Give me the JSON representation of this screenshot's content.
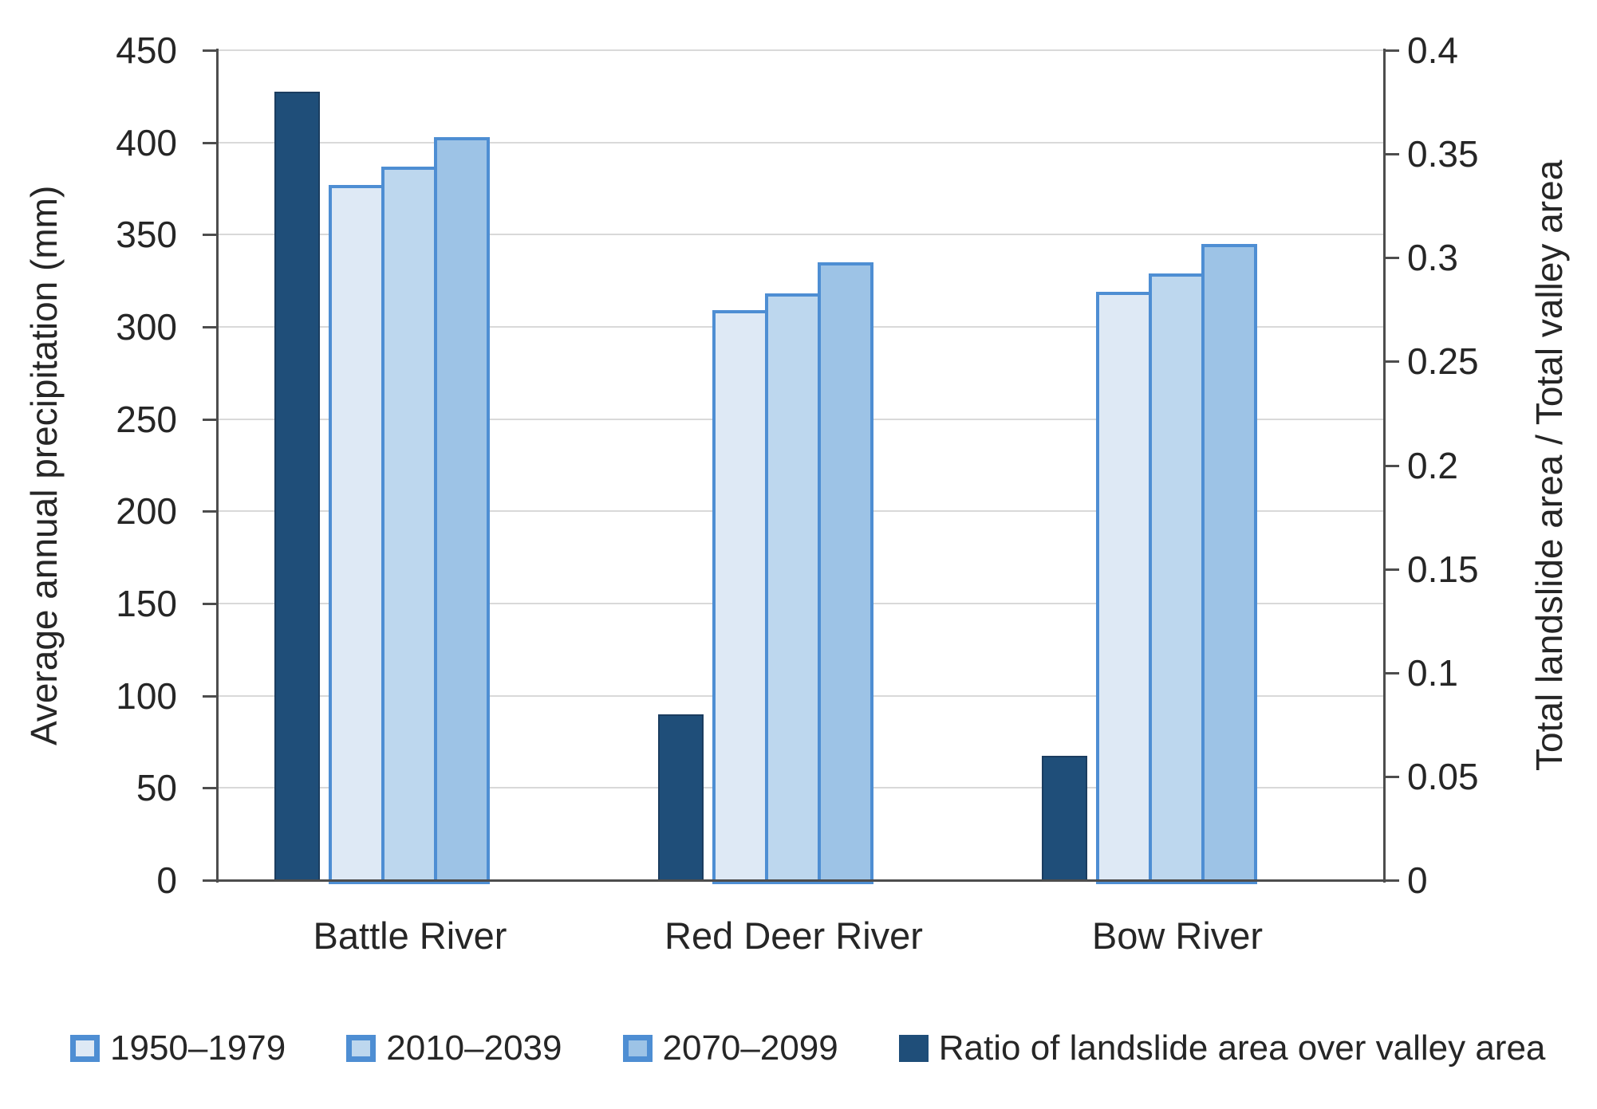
{
  "chart_data": {
    "type": "bar",
    "title": "",
    "categories": [
      "Battle River",
      "Red Deer River",
      "Bow River"
    ],
    "series": [
      {
        "name": "1950–1979",
        "yaxis": "left",
        "fill": "#DEE9F5",
        "stroke": "#4E8ED3",
        "values": [
          377,
          309,
          319
        ]
      },
      {
        "name": "2010–2039",
        "yaxis": "left",
        "fill": "#BDD7EE",
        "stroke": "#4E8ED3",
        "values": [
          387,
          318,
          329
        ]
      },
      {
        "name": "2070–2099",
        "yaxis": "left",
        "fill": "#9DC3E6",
        "stroke": "#4E8ED3",
        "values": [
          403,
          335,
          345
        ]
      },
      {
        "name": "Ratio of landslide area over valley area",
        "yaxis": "right",
        "fill": "#1F4E79",
        "stroke": "#1B3D60",
        "values": [
          0.38,
          0.08,
          0.06
        ]
      }
    ],
    "left_axis": {
      "title": "Average annual precipitation (mm)",
      "min": 0,
      "max": 450,
      "step": 50,
      "tick_labels": [
        "0",
        "50",
        "100",
        "150",
        "200",
        "250",
        "300",
        "350",
        "400",
        "450"
      ]
    },
    "right_axis": {
      "title": "Total landslide area / Total valley area",
      "min": 0,
      "max": 0.4,
      "step": 0.05,
      "tick_labels": [
        "0",
        "0.05",
        "0.1",
        "0.15",
        "0.2",
        "0.25",
        "0.3",
        "0.35",
        "0.4"
      ]
    },
    "grid": true,
    "legend_position": "bottom",
    "colors": {
      "gridline": "#D9D9D9",
      "axis_line": "#4D4D4D",
      "text": "#262626"
    }
  }
}
